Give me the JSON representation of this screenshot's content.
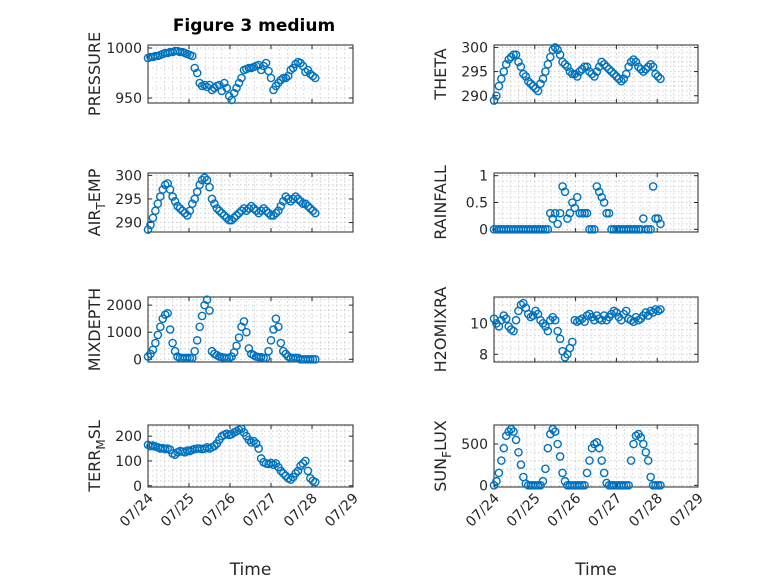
{
  "chart_data": {
    "type": "scatter",
    "title": "Figure 3 medium",
    "x_tick_labels": [
      "07/24",
      "07/25",
      "07/26",
      "07/27",
      "07/28",
      "07/29"
    ],
    "xlabel": "Time",
    "marker_color": "#0072bd",
    "grid": true,
    "panels": [
      {
        "key": "pressure",
        "ylabel_main": "PRESSURE",
        "ylabel_sub": "",
        "ylabel_tail": "",
        "ylim": [
          945,
          1003
        ],
        "yticks": [
          950,
          1000
        ],
        "x": [
          0.0,
          0.06,
          0.12,
          0.18,
          0.24,
          0.3,
          0.36,
          0.42,
          0.48,
          0.54,
          0.6,
          0.66,
          0.72,
          0.78,
          0.84,
          0.9,
          0.96,
          1.02,
          1.08,
          1.14,
          1.2,
          1.26,
          1.32,
          1.38,
          1.44,
          1.5,
          1.56,
          1.62,
          1.68,
          1.74,
          1.8,
          1.86,
          1.92,
          1.98,
          2.04,
          2.1,
          2.16,
          2.22,
          2.28,
          2.34,
          2.4,
          2.46,
          2.52,
          2.58,
          2.64,
          2.7,
          2.76,
          2.82,
          2.88,
          2.94,
          3.0,
          3.06,
          3.12,
          3.18,
          3.24,
          3.3,
          3.36,
          3.42,
          3.48,
          3.54,
          3.6,
          3.66,
          3.72,
          3.78,
          3.84,
          3.9,
          3.96,
          4.02,
          4.08
        ],
        "y": [
          990,
          991,
          991,
          992,
          992,
          993,
          994,
          995,
          995,
          996,
          996,
          997,
          997,
          996,
          996,
          995,
          994,
          993,
          992,
          980,
          975,
          965,
          962,
          963,
          961,
          963,
          958,
          960,
          962,
          963,
          957,
          965,
          960,
          952,
          948,
          955,
          960,
          965,
          970,
          978,
          979,
          980,
          980,
          981,
          982,
          983,
          978,
          982,
          985,
          977,
          970,
          958,
          962,
          965,
          968,
          970,
          970,
          972,
          978,
          980,
          984,
          986,
          985,
          982,
          976,
          978,
          974,
          972,
          970
        ],
        "y_encoding": "same pattern"
      },
      {
        "key": "theta",
        "ylabel_main": "THETA",
        "ylabel_sub": "",
        "ylabel_tail": "",
        "ylim": [
          288.5,
          300.5
        ],
        "yticks": [
          290,
          295,
          300
        ],
        "x": [
          0.0,
          0.06,
          0.12,
          0.18,
          0.24,
          0.3,
          0.36,
          0.42,
          0.48,
          0.54,
          0.6,
          0.66,
          0.72,
          0.78,
          0.84,
          0.9,
          0.96,
          1.02,
          1.08,
          1.14,
          1.2,
          1.26,
          1.32,
          1.38,
          1.44,
          1.5,
          1.56,
          1.62,
          1.68,
          1.74,
          1.8,
          1.86,
          1.92,
          1.98,
          2.04,
          2.1,
          2.16,
          2.22,
          2.28,
          2.34,
          2.4,
          2.46,
          2.52,
          2.58,
          2.64,
          2.7,
          2.76,
          2.82,
          2.88,
          2.94,
          3.0,
          3.06,
          3.12,
          3.18,
          3.24,
          3.3,
          3.36,
          3.42,
          3.48,
          3.54,
          3.6,
          3.66,
          3.72,
          3.78,
          3.84,
          3.9,
          3.96,
          4.02,
          4.08
        ],
        "y": [
          289,
          290,
          292,
          293.5,
          295,
          296.5,
          297.5,
          298,
          298.5,
          298.5,
          297,
          296,
          294.5,
          294,
          293,
          292.5,
          292,
          291.5,
          291,
          292.5,
          293.5,
          295,
          296.5,
          298,
          299.5,
          300,
          299.5,
          298.5,
          297,
          296.5,
          296,
          295,
          294.5,
          294.5,
          294,
          295,
          295.5,
          296,
          296,
          295,
          294.5,
          294,
          295,
          296,
          297,
          296.5,
          296,
          295.5,
          295,
          294.5,
          294,
          293.5,
          293,
          293.5,
          294.5,
          296,
          297,
          297.5,
          297,
          296,
          295.5,
          295,
          295.5,
          296,
          296.5,
          296,
          294.5,
          294,
          293.5
        ]
      },
      {
        "key": "air_temp",
        "ylabel_main": "AIR",
        "ylabel_sub": "T",
        "ylabel_tail": "EMP",
        "ylim": [
          288,
          300.5
        ],
        "yticks": [
          290,
          295,
          300
        ],
        "x": [
          0.0,
          0.06,
          0.12,
          0.18,
          0.24,
          0.3,
          0.36,
          0.42,
          0.48,
          0.54,
          0.6,
          0.66,
          0.72,
          0.78,
          0.84,
          0.9,
          0.96,
          1.02,
          1.08,
          1.14,
          1.2,
          1.26,
          1.32,
          1.38,
          1.44,
          1.5,
          1.56,
          1.62,
          1.68,
          1.74,
          1.8,
          1.86,
          1.92,
          1.98,
          2.04,
          2.1,
          2.16,
          2.22,
          2.28,
          2.34,
          2.4,
          2.46,
          2.52,
          2.58,
          2.64,
          2.7,
          2.76,
          2.82,
          2.88,
          2.94,
          3.0,
          3.06,
          3.12,
          3.18,
          3.24,
          3.3,
          3.36,
          3.42,
          3.48,
          3.54,
          3.6,
          3.66,
          3.72,
          3.78,
          3.84,
          3.9,
          3.96,
          4.02,
          4.08
        ],
        "y": [
          288.5,
          289.5,
          291,
          292.5,
          294,
          295.5,
          297,
          298,
          298.3,
          297,
          295.5,
          294.5,
          293.5,
          293,
          292.5,
          292,
          291.5,
          292.5,
          294,
          295,
          296.5,
          298,
          299,
          299.5,
          299,
          297.5,
          295,
          294,
          293,
          292.5,
          292,
          291.5,
          291,
          290.5,
          290.5,
          291,
          291.5,
          292,
          292.5,
          293,
          292.5,
          293,
          293.5,
          293,
          292.5,
          292,
          292.5,
          293,
          292.5,
          292,
          291.5,
          291.5,
          292,
          292.5,
          293.5,
          294.5,
          295.5,
          295,
          294.5,
          295,
          295.5,
          295,
          294.5,
          294,
          294,
          293.5,
          293,
          292.5,
          292
        ]
      },
      {
        "key": "rainfall",
        "ylabel_main": "RAINFALL",
        "ylabel_sub": "",
        "ylabel_tail": "",
        "ylim": [
          -0.05,
          1.05
        ],
        "yticks": [
          0,
          0.5,
          1
        ],
        "x": [
          0.0,
          0.06,
          0.12,
          0.18,
          0.24,
          0.3,
          0.36,
          0.42,
          0.48,
          0.54,
          0.6,
          0.66,
          0.72,
          0.78,
          0.84,
          0.9,
          0.96,
          1.02,
          1.08,
          1.14,
          1.2,
          1.26,
          1.32,
          1.38,
          1.44,
          1.5,
          1.56,
          1.62,
          1.68,
          1.74,
          1.8,
          1.86,
          1.92,
          1.98,
          2.04,
          2.1,
          2.16,
          2.22,
          2.28,
          2.34,
          2.4,
          2.46,
          2.52,
          2.58,
          2.64,
          2.7,
          2.76,
          2.82,
          2.88,
          2.94,
          3.0,
          3.06,
          3.12,
          3.18,
          3.24,
          3.3,
          3.36,
          3.42,
          3.48,
          3.54,
          3.6,
          3.66,
          3.72,
          3.78,
          3.84,
          3.9,
          3.96,
          4.02,
          4.08
        ],
        "y": [
          0,
          0,
          0,
          0,
          0,
          0,
          0,
          0,
          0,
          0,
          0,
          0,
          0,
          0,
          0,
          0,
          0,
          0,
          0,
          0,
          0,
          0,
          0,
          0.3,
          0.2,
          0.3,
          0.1,
          0.3,
          0.8,
          0.7,
          0.2,
          0.3,
          0.5,
          0.4,
          0.6,
          0.3,
          0.3,
          0.3,
          0.3,
          0,
          0,
          0,
          0.8,
          0.7,
          0.6,
          0.5,
          0.3,
          0.3,
          0,
          0,
          0,
          0,
          0,
          0,
          0,
          0,
          0,
          0,
          0,
          0,
          0,
          0.2,
          0,
          0,
          0,
          0.8,
          0.2,
          0.2,
          0.1
        ]
      },
      {
        "key": "mixdepth",
        "ylabel_main": "MIXDEPTH",
        "ylabel_sub": "",
        "ylabel_tail": "",
        "ylim": [
          -100,
          2300
        ],
        "yticks": [
          0,
          1000,
          2000
        ],
        "x": [
          0.0,
          0.06,
          0.12,
          0.18,
          0.24,
          0.3,
          0.36,
          0.42,
          0.48,
          0.54,
          0.6,
          0.66,
          0.72,
          0.78,
          0.84,
          0.9,
          0.96,
          1.02,
          1.08,
          1.14,
          1.2,
          1.26,
          1.32,
          1.38,
          1.44,
          1.5,
          1.56,
          1.62,
          1.68,
          1.74,
          1.8,
          1.86,
          1.92,
          1.98,
          2.04,
          2.1,
          2.16,
          2.22,
          2.28,
          2.34,
          2.4,
          2.46,
          2.52,
          2.58,
          2.64,
          2.7,
          2.76,
          2.82,
          2.88,
          2.94,
          3.0,
          3.06,
          3.12,
          3.18,
          3.24,
          3.3,
          3.36,
          3.42,
          3.48,
          3.54,
          3.6,
          3.66,
          3.72,
          3.78,
          3.84,
          3.9,
          3.96,
          4.02,
          4.08
        ],
        "y": [
          100,
          200,
          350,
          600,
          900,
          1200,
          1500,
          1650,
          1700,
          1100,
          600,
          300,
          100,
          50,
          50,
          50,
          50,
          50,
          50,
          300,
          700,
          1200,
          1600,
          2000,
          2200,
          1800,
          300,
          200,
          150,
          100,
          80,
          60,
          50,
          50,
          100,
          250,
          500,
          800,
          1200,
          1400,
          1000,
          400,
          200,
          150,
          100,
          80,
          80,
          50,
          50,
          300,
          700,
          1100,
          1500,
          1200,
          600,
          300,
          200,
          100,
          50,
          50,
          50,
          50,
          0,
          0,
          0,
          0,
          0,
          0,
          0
        ]
      },
      {
        "key": "h2omixra",
        "ylabel_main": "H2OMIXRA",
        "ylabel_sub": "",
        "ylabel_tail": "",
        "ylim": [
          7.5,
          11.7
        ],
        "yticks": [
          8,
          10
        ],
        "x": [
          0.0,
          0.06,
          0.12,
          0.18,
          0.24,
          0.3,
          0.36,
          0.42,
          0.48,
          0.54,
          0.6,
          0.66,
          0.72,
          0.78,
          0.84,
          0.9,
          0.96,
          1.02,
          1.08,
          1.14,
          1.2,
          1.26,
          1.32,
          1.38,
          1.44,
          1.5,
          1.56,
          1.62,
          1.68,
          1.74,
          1.8,
          1.86,
          1.92,
          1.98,
          2.04,
          2.1,
          2.16,
          2.22,
          2.28,
          2.34,
          2.4,
          2.46,
          2.52,
          2.58,
          2.64,
          2.7,
          2.76,
          2.82,
          2.88,
          2.94,
          3.0,
          3.06,
          3.12,
          3.18,
          3.24,
          3.3,
          3.36,
          3.42,
          3.48,
          3.54,
          3.6,
          3.66,
          3.72,
          3.78,
          3.84,
          3.9,
          3.96,
          4.02,
          4.08
        ],
        "y": [
          10.3,
          10,
          9.8,
          10.2,
          10.5,
          10.3,
          9.8,
          9.6,
          9.5,
          10.2,
          10.8,
          11.2,
          11.3,
          11,
          10.6,
          10.4,
          10.5,
          10.8,
          10.6,
          10.2,
          10,
          9.8,
          9.5,
          10.2,
          10.4,
          10.2,
          9.5,
          9.0,
          8.2,
          7.8,
          8.0,
          8.4,
          8.8,
          10.2,
          10.1,
          10.2,
          10.3,
          10.1,
          10.5,
          10.6,
          10.4,
          10.2,
          10.5,
          10.3,
          10.2,
          10.5,
          10.2,
          10.4,
          10.6,
          10.8,
          10.7,
          10.4,
          10.2,
          10.6,
          10.8,
          10.3,
          10.2,
          10.1,
          10.4,
          10.2,
          10.3,
          10.5,
          10.7,
          10.5,
          10.8,
          10.7,
          10.9,
          10.8,
          10.9
        ]
      },
      {
        "key": "terr_msl",
        "ylabel_main": "TERR",
        "ylabel_sub": "M",
        "ylabel_tail": "SL",
        "ylim": [
          -5,
          245
        ],
        "yticks": [
          0,
          100,
          200
        ],
        "x": [
          0.0,
          0.06,
          0.12,
          0.18,
          0.24,
          0.3,
          0.36,
          0.42,
          0.48,
          0.54,
          0.6,
          0.66,
          0.72,
          0.78,
          0.84,
          0.9,
          0.96,
          1.02,
          1.08,
          1.14,
          1.2,
          1.26,
          1.32,
          1.38,
          1.44,
          1.5,
          1.56,
          1.62,
          1.68,
          1.74,
          1.8,
          1.86,
          1.92,
          1.98,
          2.04,
          2.1,
          2.16,
          2.22,
          2.28,
          2.34,
          2.4,
          2.46,
          2.52,
          2.58,
          2.64,
          2.7,
          2.76,
          2.82,
          2.88,
          2.94,
          3.0,
          3.06,
          3.12,
          3.18,
          3.24,
          3.3,
          3.36,
          3.42,
          3.48,
          3.54,
          3.6,
          3.66,
          3.72,
          3.78,
          3.84,
          3.9,
          3.96,
          4.02,
          4.08
        ],
        "y": [
          165,
          160,
          162,
          158,
          155,
          150,
          152,
          148,
          150,
          145,
          130,
          125,
          135,
          140,
          138,
          135,
          142,
          140,
          145,
          148,
          150,
          150,
          148,
          150,
          155,
          150,
          155,
          160,
          170,
          185,
          200,
          205,
          210,
          205,
          208,
          215,
          220,
          225,
          230,
          215,
          200,
          185,
          175,
          180,
          170,
          150,
          110,
          95,
          90,
          88,
          92,
          85,
          90,
          75,
          60,
          50,
          40,
          30,
          25,
          35,
          50,
          60,
          80,
          90,
          100,
          60,
          30,
          20,
          15
        ]
      },
      {
        "key": "sun_flux",
        "ylabel_main": "SUN",
        "ylabel_sub": "F",
        "ylabel_tail": "LUX",
        "ylim": [
          -20,
          730
        ],
        "yticks": [
          0,
          500
        ],
        "x": [
          0.0,
          0.06,
          0.12,
          0.18,
          0.24,
          0.3,
          0.36,
          0.42,
          0.48,
          0.54,
          0.6,
          0.66,
          0.72,
          0.78,
          0.84,
          0.9,
          0.96,
          1.02,
          1.08,
          1.14,
          1.2,
          1.26,
          1.32,
          1.38,
          1.44,
          1.5,
          1.56,
          1.62,
          1.68,
          1.74,
          1.8,
          1.86,
          1.92,
          1.98,
          2.04,
          2.1,
          2.16,
          2.22,
          2.28,
          2.34,
          2.4,
          2.46,
          2.52,
          2.58,
          2.64,
          2.7,
          2.76,
          2.82,
          2.88,
          2.94,
          3.0,
          3.06,
          3.12,
          3.18,
          3.24,
          3.3,
          3.36,
          3.42,
          3.48,
          3.54,
          3.6,
          3.66,
          3.72,
          3.78,
          3.84,
          3.9,
          3.96,
          4.02,
          4.08
        ],
        "y": [
          0,
          50,
          150,
          300,
          450,
          600,
          650,
          680,
          650,
          550,
          400,
          250,
          100,
          20,
          0,
          0,
          0,
          0,
          0,
          0,
          50,
          200,
          450,
          620,
          680,
          650,
          500,
          350,
          150,
          50,
          0,
          0,
          0,
          0,
          0,
          0,
          0,
          0,
          150,
          300,
          450,
          500,
          520,
          450,
          300,
          150,
          30,
          0,
          0,
          0,
          0,
          0,
          0,
          0,
          0,
          0,
          300,
          500,
          600,
          620,
          580,
          500,
          400,
          300,
          100,
          0,
          0,
          0,
          0
        ]
      }
    ]
  }
}
